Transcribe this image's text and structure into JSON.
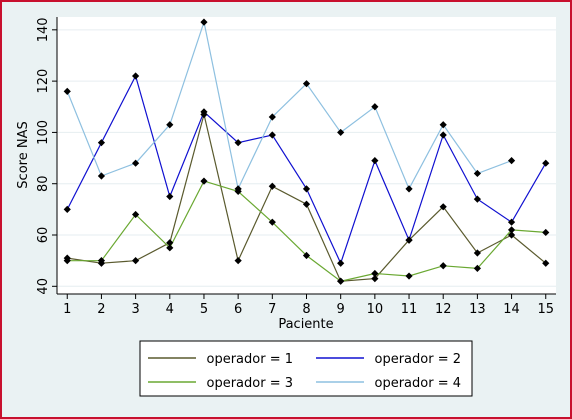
{
  "chart_data": {
    "type": "line",
    "title": "",
    "xlabel": "Paciente",
    "ylabel": "Score NAS",
    "x": [
      1,
      2,
      3,
      4,
      5,
      6,
      7,
      8,
      9,
      10,
      11,
      12,
      13,
      14,
      15
    ],
    "xlim": [
      0.7,
      15.3
    ],
    "ylim": [
      37,
      145
    ],
    "yticks": [
      40,
      60,
      80,
      100,
      120,
      140
    ],
    "grid": true,
    "legend_position": "bottom",
    "series": [
      {
        "name": "operador = 1",
        "color": "#5a5a2e",
        "values": [
          51,
          49,
          50,
          57,
          107,
          50,
          79,
          72,
          42,
          43,
          58,
          71,
          53,
          60,
          49
        ]
      },
      {
        "name": "operador = 2",
        "color": "#1010d0",
        "values": [
          70,
          96,
          122,
          75,
          108,
          96,
          99,
          78,
          49,
          89,
          58,
          99,
          74,
          65,
          88
        ]
      },
      {
        "name": "operador = 3",
        "color": "#6aa832",
        "values": [
          50,
          50,
          68,
          55,
          81,
          77,
          65,
          52,
          42,
          45,
          44,
          48,
          47,
          62,
          61
        ]
      },
      {
        "name": "operador = 4",
        "color": "#8ec0e0",
        "values": [
          116,
          83,
          88,
          103,
          143,
          78,
          106,
          119,
          100,
          110,
          78,
          103,
          84,
          89,
          null
        ]
      }
    ]
  }
}
